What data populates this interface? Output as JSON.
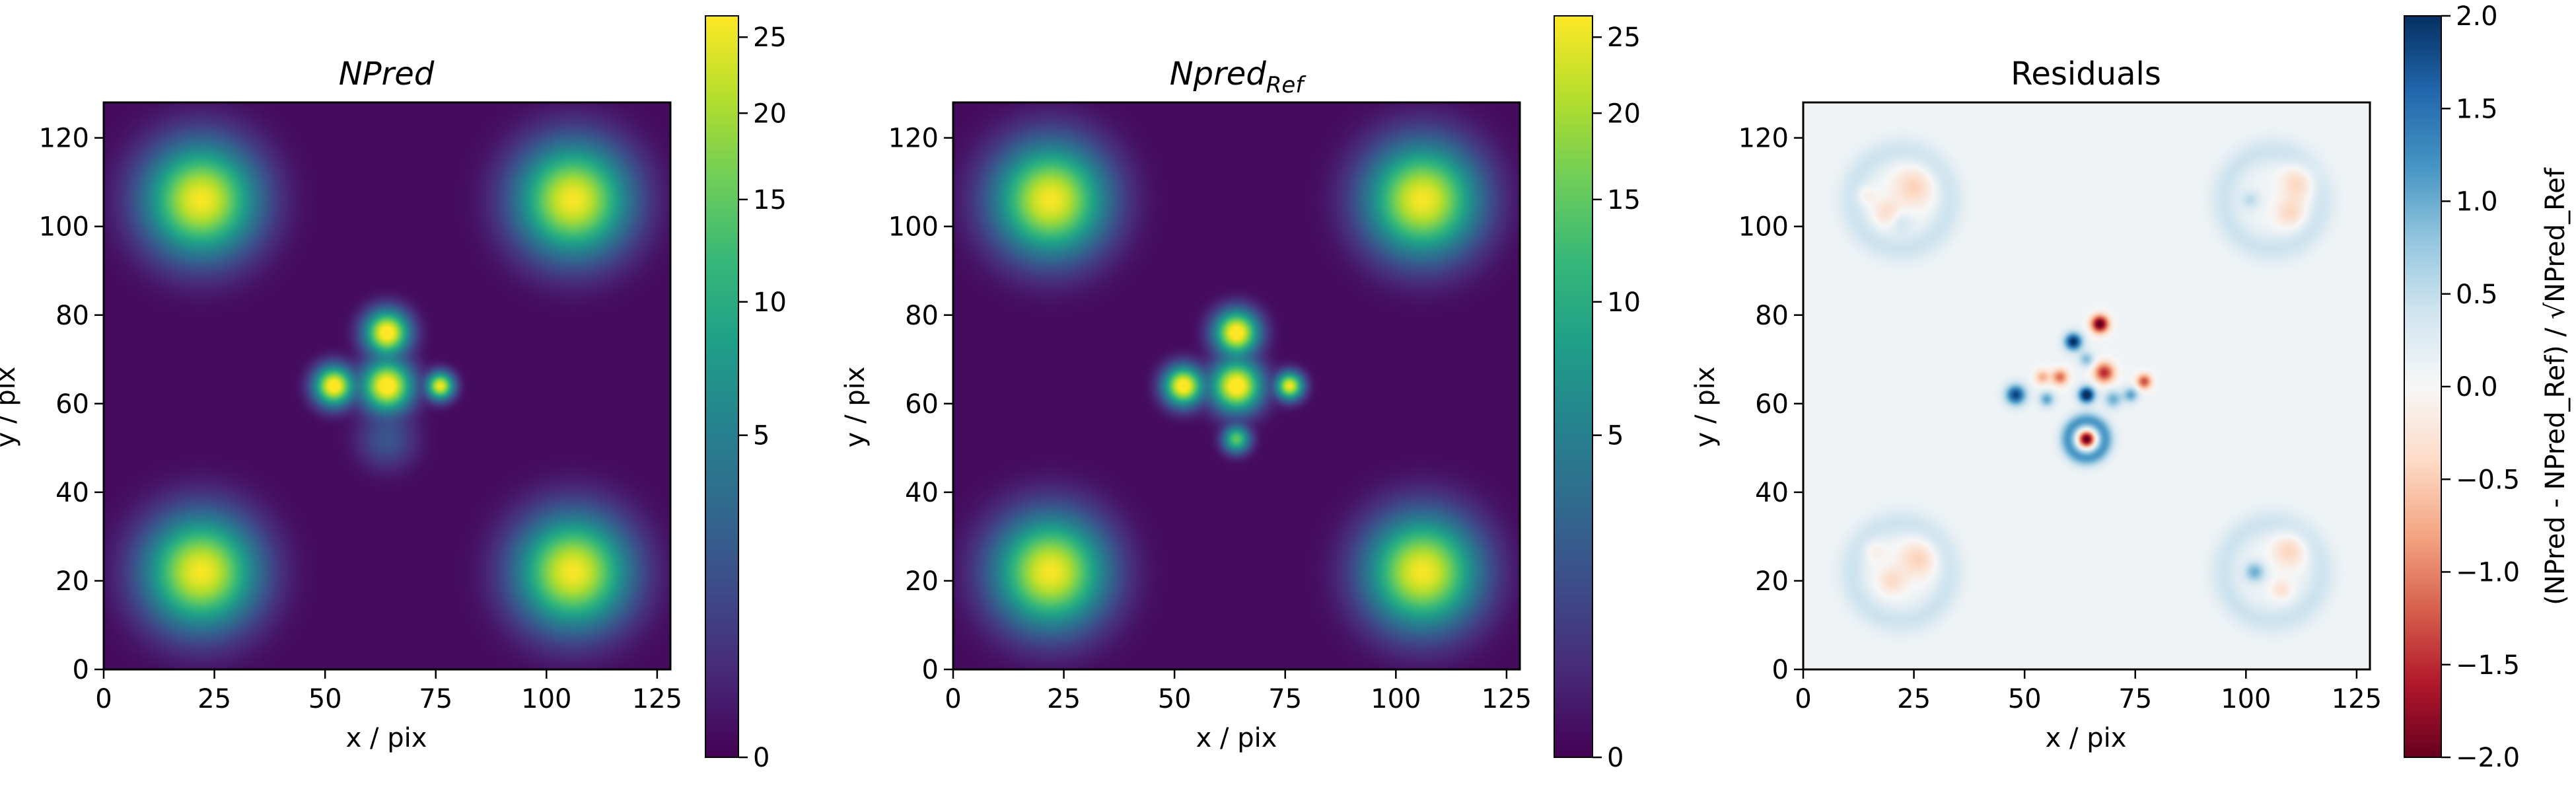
{
  "chart_data": [
    {
      "type": "heatmap",
      "title": "NPred",
      "title_style": "italic",
      "xlabel": "x / pix",
      "ylabel": "y / pix",
      "xlim": [
        0,
        128
      ],
      "ylim": [
        0,
        128
      ],
      "x_ticks": [
        "0",
        "25",
        "50",
        "75",
        "100",
        "125"
      ],
      "y_ticks": [
        "0",
        "20",
        "40",
        "60",
        "80",
        "100",
        "120"
      ],
      "colormap": "viridis",
      "colorbar": {
        "scale": "sqrt",
        "range": [
          0,
          26.5
        ],
        "ticks": [
          "0",
          "5",
          "10",
          "15",
          "20",
          "25"
        ]
      },
      "sources": [
        {
          "x": 22,
          "y": 106,
          "sigma": 6.5,
          "amplitude": 26
        },
        {
          "x": 106,
          "y": 106,
          "sigma": 6.5,
          "amplitude": 26
        },
        {
          "x": 22,
          "y": 22,
          "sigma": 6.5,
          "amplitude": 26
        },
        {
          "x": 106,
          "y": 22,
          "sigma": 6.5,
          "amplitude": 26
        },
        {
          "x": 64,
          "y": 76,
          "sigma": 2.6,
          "amplitude": 30
        },
        {
          "x": 64,
          "y": 64,
          "sigma": 3.0,
          "amplitude": 30
        },
        {
          "x": 52,
          "y": 64,
          "sigma": 2.3,
          "amplitude": 30
        },
        {
          "x": 76,
          "y": 64,
          "sigma": 1.6,
          "amplitude": 26
        },
        {
          "x": 64,
          "y": 52,
          "sigma": 3.5,
          "amplitude": 1.8
        }
      ]
    },
    {
      "type": "heatmap",
      "title": "Npred",
      "title_subscript": "Ref",
      "title_style": "italic",
      "xlabel": "x / pix",
      "ylabel": "y / pix",
      "xlim": [
        0,
        128
      ],
      "ylim": [
        0,
        128
      ],
      "x_ticks": [
        "0",
        "25",
        "50",
        "75",
        "100",
        "125"
      ],
      "y_ticks": [
        "0",
        "20",
        "40",
        "60",
        "80",
        "100",
        "120"
      ],
      "colormap": "viridis",
      "colorbar": {
        "scale": "sqrt",
        "range": [
          0,
          26.5
        ],
        "ticks": [
          "0",
          "5",
          "10",
          "15",
          "20",
          "25"
        ]
      },
      "sources": [
        {
          "x": 22,
          "y": 106,
          "sigma": 6.5,
          "amplitude": 26
        },
        {
          "x": 106,
          "y": 106,
          "sigma": 6.5,
          "amplitude": 26
        },
        {
          "x": 22,
          "y": 22,
          "sigma": 6.5,
          "amplitude": 26
        },
        {
          "x": 106,
          "y": 22,
          "sigma": 6.5,
          "amplitude": 26
        },
        {
          "x": 64,
          "y": 76,
          "sigma": 2.6,
          "amplitude": 30
        },
        {
          "x": 64,
          "y": 64,
          "sigma": 3.0,
          "amplitude": 30
        },
        {
          "x": 52,
          "y": 64,
          "sigma": 2.3,
          "amplitude": 30
        },
        {
          "x": 76,
          "y": 64,
          "sigma": 1.6,
          "amplitude": 26
        },
        {
          "x": 64,
          "y": 52,
          "sigma": 1.6,
          "amplitude": 15
        }
      ]
    },
    {
      "type": "heatmap",
      "title": "Residuals",
      "xlabel": "x / pix",
      "ylabel": "y / pix",
      "xlim": [
        0,
        128
      ],
      "ylim": [
        0,
        128
      ],
      "x_ticks": [
        "0",
        "25",
        "50",
        "75",
        "100",
        "125"
      ],
      "y_ticks": [
        "0",
        "20",
        "40",
        "60",
        "80",
        "100",
        "120"
      ],
      "colormap": "RdBu",
      "colorbar": {
        "label": "(NPred - NPred_Ref) / √NPred_Ref",
        "range": [
          -2.0,
          2.0
        ],
        "ticks": [
          "−2.0",
          "−1.5",
          "−1.0",
          "−0.5",
          "0.0",
          "0.5",
          "1.0",
          "1.5",
          "2.0"
        ]
      },
      "background": 0.08,
      "features": [
        {
          "x": 22,
          "y": 106,
          "ring_r": 11,
          "ring_w": 2.2,
          "ring_a": 0.35
        },
        {
          "x": 106,
          "y": 106,
          "ring_r": 11,
          "ring_w": 2.2,
          "ring_a": 0.35
        },
        {
          "x": 22,
          "y": 22,
          "ring_r": 11,
          "ring_w": 2.2,
          "ring_a": 0.35
        },
        {
          "x": 106,
          "y": 22,
          "ring_r": 11,
          "ring_w": 2.2,
          "ring_a": 0.35
        },
        {
          "x": 25,
          "y": 109,
          "sigma": 3.2,
          "amplitude": -0.55
        },
        {
          "x": 19,
          "y": 103,
          "sigma": 2.2,
          "amplitude": -0.45
        },
        {
          "x": 14,
          "y": 107,
          "sigma": 1.6,
          "amplitude": -0.3
        },
        {
          "x": 22,
          "y": 101,
          "sigma": 1.8,
          "amplitude": 0.35
        },
        {
          "x": 112,
          "y": 110,
          "sigma": 2.8,
          "amplitude": -0.55
        },
        {
          "x": 110,
          "y": 103,
          "sigma": 2.4,
          "amplitude": -0.5
        },
        {
          "x": 101,
          "y": 106,
          "sigma": 1.5,
          "amplitude": 0.45
        },
        {
          "x": 26,
          "y": 25,
          "sigma": 3.0,
          "amplitude": -0.55
        },
        {
          "x": 20,
          "y": 20,
          "sigma": 2.2,
          "amplitude": -0.45
        },
        {
          "x": 16,
          "y": 27,
          "sigma": 1.8,
          "amplitude": -0.3
        },
        {
          "x": 110,
          "y": 27,
          "sigma": 2.8,
          "amplitude": -0.55
        },
        {
          "x": 102,
          "y": 22,
          "sigma": 1.6,
          "amplitude": 0.9
        },
        {
          "x": 108,
          "y": 18,
          "sigma": 1.6,
          "amplitude": -0.4
        },
        {
          "x": 67,
          "y": 78,
          "sigma": 1.4,
          "amplitude": -2.2
        },
        {
          "x": 61,
          "y": 74,
          "sigma": 1.4,
          "amplitude": 2.0
        },
        {
          "x": 64,
          "y": 70,
          "sigma": 1.2,
          "amplitude": 0.8
        },
        {
          "x": 68,
          "y": 67,
          "sigma": 1.6,
          "amplitude": -1.6
        },
        {
          "x": 64,
          "y": 62,
          "sigma": 1.3,
          "amplitude": 2.2
        },
        {
          "x": 58,
          "y": 66,
          "sigma": 1.3,
          "amplitude": -1.2
        },
        {
          "x": 54,
          "y": 66,
          "sigma": 1.2,
          "amplitude": -0.8
        },
        {
          "x": 48,
          "y": 62,
          "sigma": 1.6,
          "amplitude": 1.8
        },
        {
          "x": 55,
          "y": 61,
          "sigma": 1.2,
          "amplitude": 1.0
        },
        {
          "x": 70,
          "y": 61,
          "sigma": 1.4,
          "amplitude": 0.9
        },
        {
          "x": 74,
          "y": 62,
          "sigma": 1.2,
          "amplitude": 1.0
        },
        {
          "x": 77,
          "y": 65,
          "sigma": 1.2,
          "amplitude": -1.4
        },
        {
          "x": 64,
          "y": 52,
          "sigma": 1.3,
          "amplitude": -2.2
        },
        {
          "x": 64,
          "y": 52,
          "ring_r": 4.2,
          "ring_w": 1.4,
          "ring_a": 1.1
        }
      ]
    }
  ]
}
